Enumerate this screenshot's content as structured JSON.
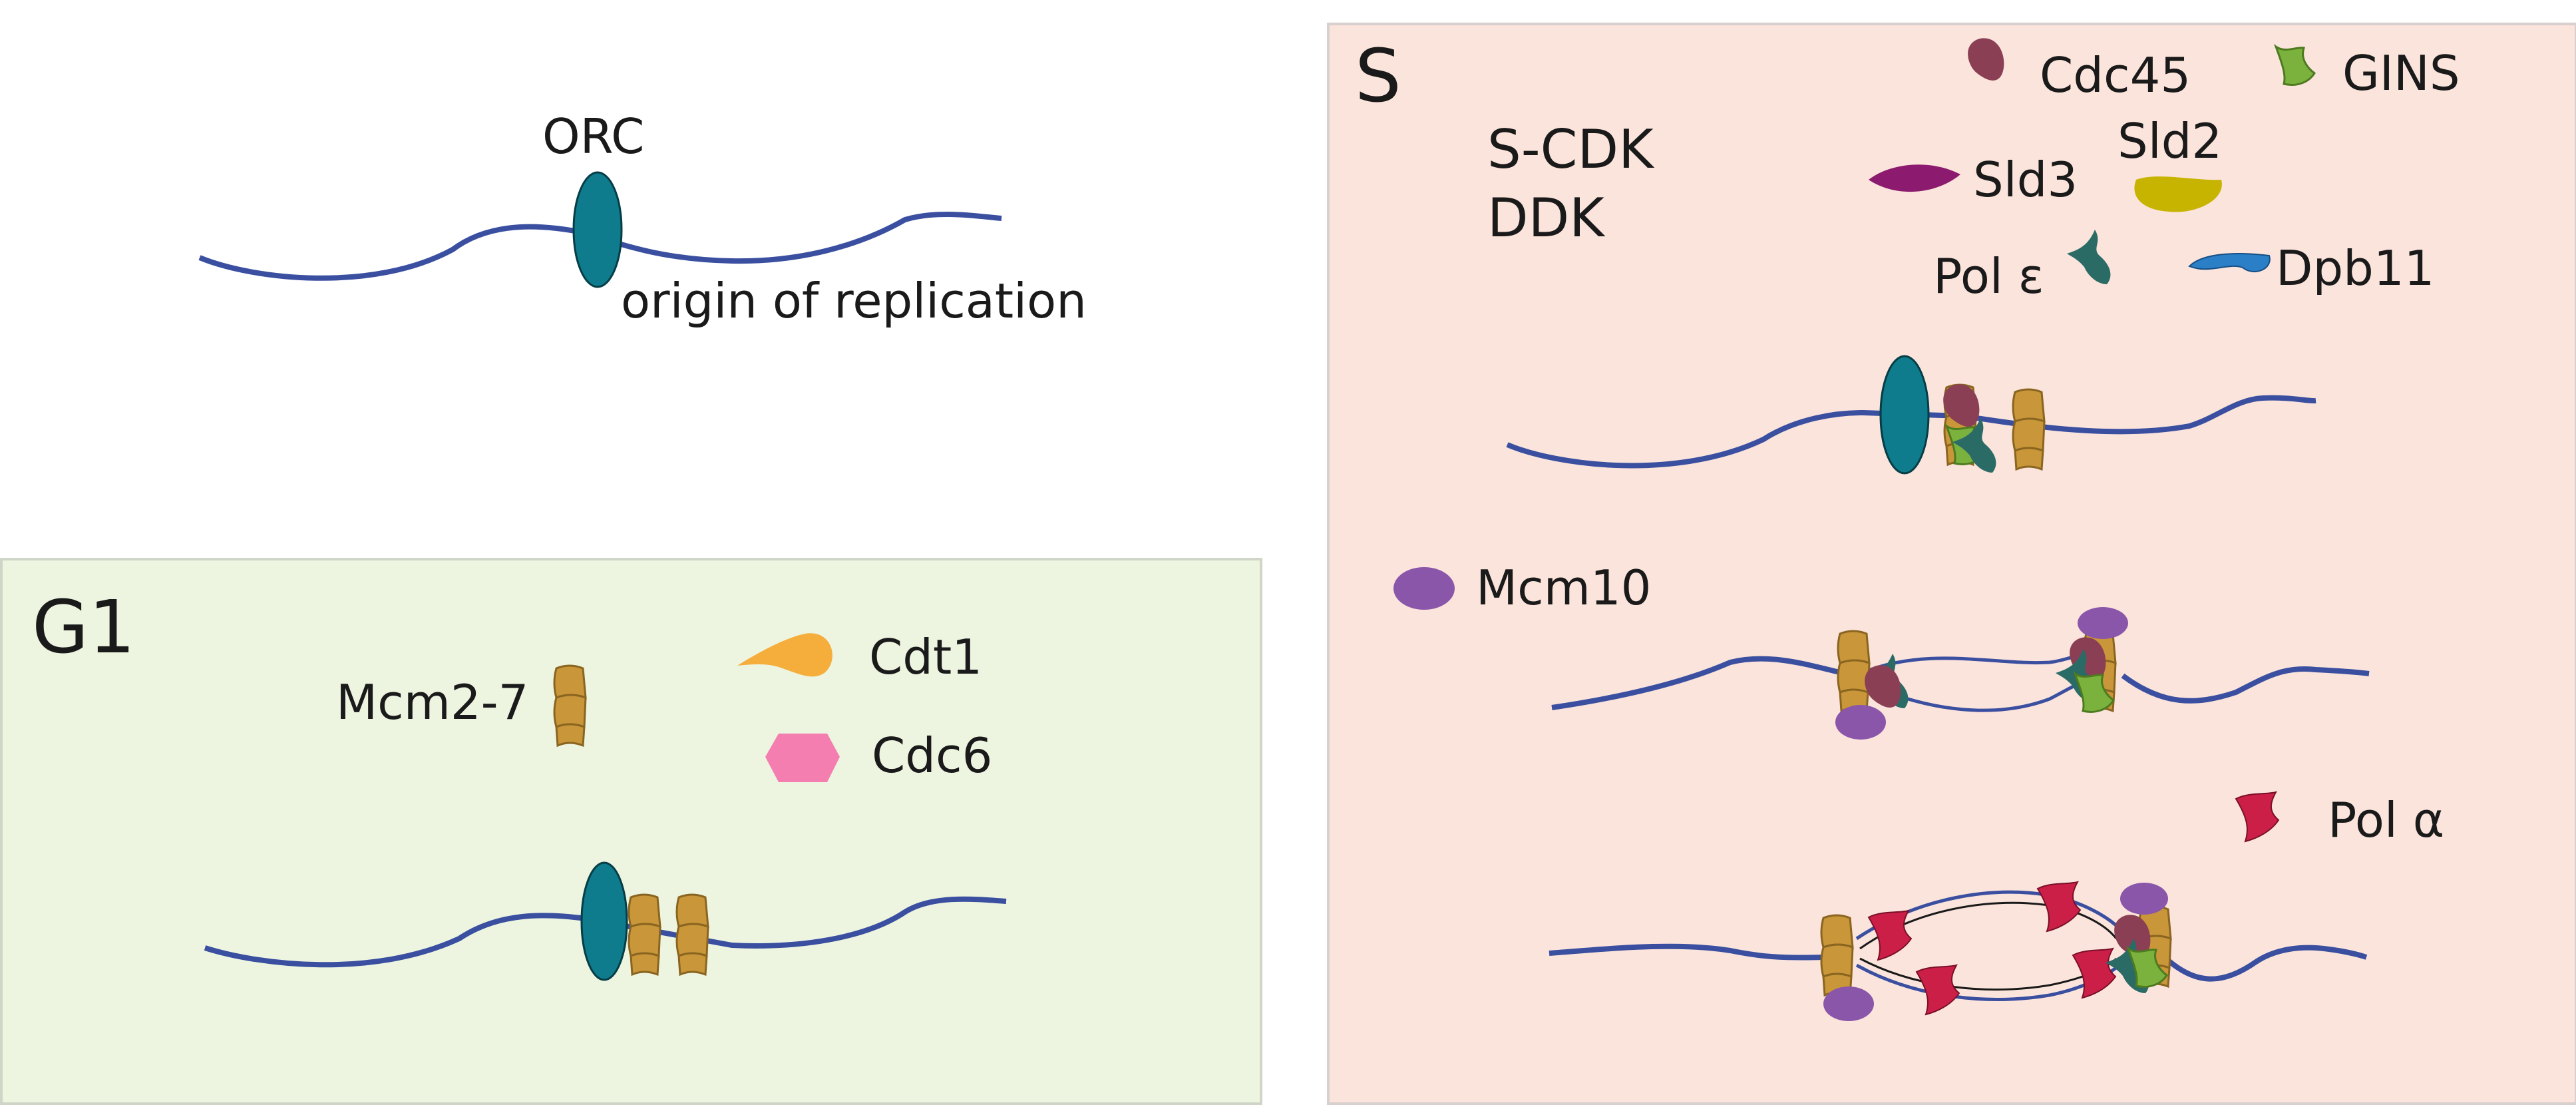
{
  "top": {
    "orc_label": "ORC",
    "origin_label": "origin of replication"
  },
  "g1": {
    "phase_label": "G1",
    "mcm_label": "Mcm2-7",
    "cdt1_label": "Cdt1",
    "cdc6_label": "Cdc6"
  },
  "s": {
    "phase_label": "S",
    "kinase1_label": "S-CDK",
    "kinase2_label": "DDK",
    "cdc45_label": "Cdc45",
    "gins_label": "GINS",
    "sld2_label": "Sld2",
    "sld3_label": "Sld3",
    "pole_label": "Pol ε",
    "dpb11_label": "Dpb11",
    "mcm10_label": "Mcm10",
    "pola_label": "Pol α"
  },
  "colors": {
    "dna": "#3a4fa0",
    "orc": "#0e7c8c",
    "mcm": "#c9963a",
    "cdt1": "#f5ad3b",
    "cdc6": "#f47eb0",
    "cdc45": "#8a3f54",
    "gins": "#7bb23e",
    "sld2": "#c6b400",
    "sld3": "#8c1a6e",
    "pole": "#2a6b66",
    "dpb11": "#2a7fc6",
    "mcm10": "#8a56aa",
    "pola": "#cc1f48",
    "g1_panel": "#edf5e1",
    "s_panel": "#fbe4dc"
  }
}
